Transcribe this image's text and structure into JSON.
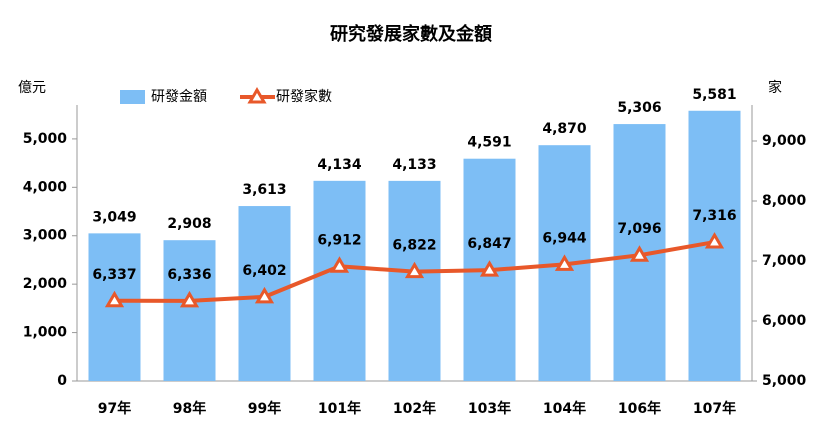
{
  "chart_data": {
    "type": "bar-line",
    "title": "研究發展家數及金額",
    "y_label": "億元",
    "y2_label": "家",
    "categories": [
      "97年",
      "98年",
      "99年",
      "101年",
      "102年",
      "103年",
      "104年",
      "106年",
      "107年"
    ],
    "series": [
      {
        "name": "研發金額",
        "type": "bar",
        "color": "#7dbef5",
        "values": [
          3049,
          2908,
          3613,
          4134,
          4133,
          4591,
          4870,
          5306,
          5581
        ],
        "value_labels": [
          "3,049",
          "2,908",
          "3,613",
          "4,134",
          "4,133",
          "4,591",
          "4,870",
          "5,306",
          "5,581"
        ]
      },
      {
        "name": "研發家數",
        "type": "line",
        "axis": "y2",
        "color": "#e8582a",
        "values": [
          6337,
          6336,
          6402,
          6912,
          6822,
          6847,
          6944,
          7096,
          7316
        ],
        "value_labels": [
          "6,337",
          "6,336",
          "6,402",
          "6,912",
          "6,822",
          "6,847",
          "6,944",
          "7,096",
          "7,316"
        ]
      }
    ],
    "ylim": [
      0,
      5700
    ],
    "yticks": [
      0,
      {
        "value": 1000,
        "label": "1,000"
      },
      {
        "value": 2000,
        "label": "2,000"
      },
      {
        "value": 3000,
        "label": "3,000"
      },
      {
        "value": 4000,
        "label": "4,000"
      },
      {
        "value": 5000,
        "label": "5,000"
      }
    ],
    "y2lim": [
      5000,
      9600
    ],
    "y2ticks": [
      {
        "value": 5000,
        "label": "5,000"
      },
      {
        "value": 6000,
        "label": "6,000"
      },
      {
        "value": 7000,
        "label": "7,000"
      },
      {
        "value": 8000,
        "label": "8,000"
      },
      {
        "value": 9000,
        "label": "9,000"
      }
    ],
    "legend": "top-left"
  }
}
